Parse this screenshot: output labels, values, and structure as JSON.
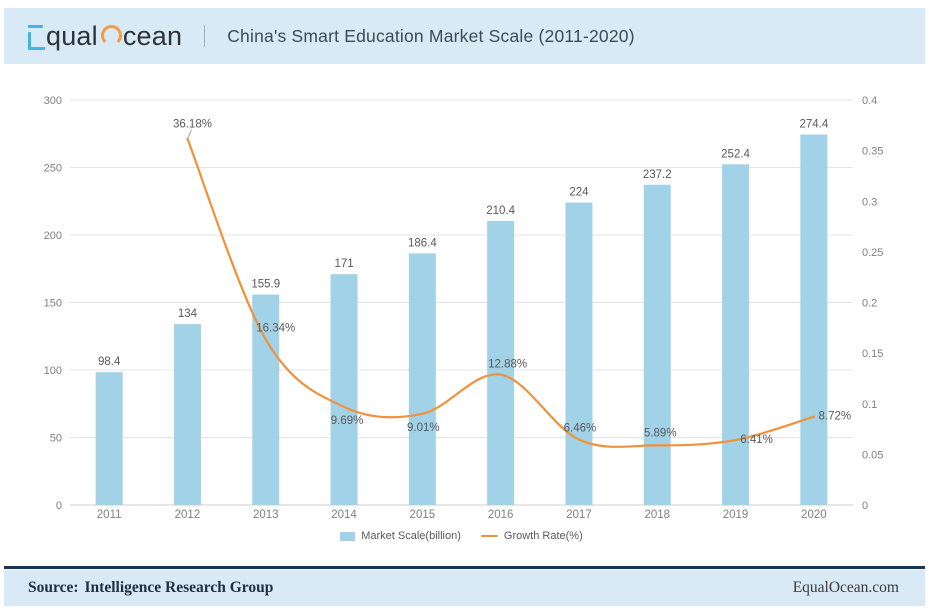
{
  "header": {
    "logo": {
      "equal_rest": "qual",
      "ocean_rest": "cean"
    },
    "title": "China's Smart Education Market Scale (2011-2020)"
  },
  "colors": {
    "header_bg": "#d8eaf6",
    "brand_blue": "#41b6e6",
    "brand_orange": "#f49a42",
    "bar_fill": "#a2d2e7",
    "line_stroke": "#f0923c",
    "footer_rule": "#16365c",
    "gridline": "#e4e4e4",
    "axis_text": "#808080",
    "label_text": "#595959"
  },
  "chart_data": {
    "type": "bar",
    "title": "China's Smart Education Market Scale (2011-2020)",
    "categories": [
      "2011",
      "2012",
      "2013",
      "2014",
      "2015",
      "2016",
      "2017",
      "2018",
      "2019",
      "2020"
    ],
    "series": [
      {
        "name": "Market Scale(billion)",
        "type": "bar",
        "axis": "left",
        "color": "#a2d2e7",
        "values": [
          98.4,
          134,
          155.9,
          171,
          186.4,
          210.4,
          224,
          237.2,
          252.4,
          274.4
        ],
        "labels": [
          "98.4",
          "134",
          "155.9",
          "171",
          "186.4",
          "210.4",
          "224",
          "237.2",
          "252.4",
          "274.4"
        ]
      },
      {
        "name": "Growth Rate(%)",
        "type": "line",
        "axis": "right",
        "color": "#f0923c",
        "values": [
          null,
          0.3618,
          0.1634,
          0.0969,
          0.0901,
          0.1288,
          0.0646,
          0.0589,
          0.0641,
          0.0872
        ],
        "labels": [
          null,
          "36.18%",
          "16.34%",
          "9.69%",
          "9.01%",
          "12.88%",
          "6.46%",
          "5.89%",
          "6.41%",
          "8.72%"
        ]
      }
    ],
    "left_axis": {
      "min": 0,
      "max": 300,
      "ticks": [
        "300",
        "250",
        "200",
        "150",
        "100",
        "50",
        "0"
      ]
    },
    "right_axis": {
      "min": 0,
      "max": 0.4,
      "ticks": [
        "0.4",
        "0.35",
        "0.3",
        "0.25",
        "0.2",
        "0.15",
        "0.1",
        "0.05",
        "0"
      ]
    },
    "grid": true,
    "legend_position": "bottom"
  },
  "legend": {
    "market_scale": "Market Scale(billion)",
    "growth_rate": "Growth Rate(%)"
  },
  "footer": {
    "source_label": "Source:",
    "source": "Intelligence Research Group",
    "website": "EqualOcean.com"
  }
}
